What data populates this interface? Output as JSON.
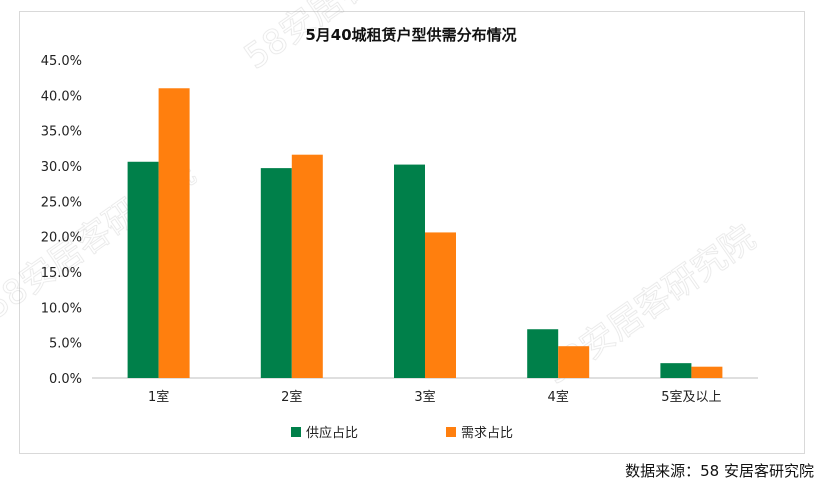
{
  "source_note": "数据来源：58 安居客研究院",
  "watermark": "58安居客研究院",
  "chart_data": {
    "type": "bar",
    "title": "5月40城租赁户型供需分布情况",
    "categories": [
      "1室",
      "2室",
      "3室",
      "4室",
      "5室及以上"
    ],
    "series": [
      {
        "name": "供应占比",
        "values": [
          30.6,
          29.7,
          30.2,
          6.9,
          2.1
        ],
        "color": "#00804a"
      },
      {
        "name": "需求占比",
        "values": [
          41.0,
          31.6,
          20.6,
          4.5,
          1.6
        ],
        "color": "#ff7f0e"
      }
    ],
    "xlabel": "",
    "ylabel": "",
    "ylim": [
      0,
      45
    ],
    "yticks": [
      "0.0%",
      "5.0%",
      "10.0%",
      "15.0%",
      "20.0%",
      "25.0%",
      "30.0%",
      "35.0%",
      "40.0%",
      "45.0%"
    ],
    "grid": false,
    "legend": "bottom-center"
  }
}
